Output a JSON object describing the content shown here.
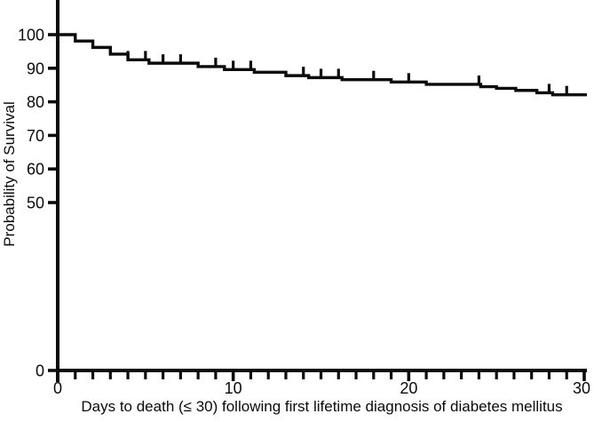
{
  "figure": {
    "background_color": "#ffffff",
    "ink_color": "#0b0b0b"
  },
  "chart_data": {
    "type": "line",
    "subtype": "kaplan-meier-step-curve",
    "title": "",
    "xlabel": "Days to death (≤ 30) following first lifetime diagnosis of diabetes mellitus",
    "ylabel": "Probability of Survival",
    "xlim": [
      0,
      30
    ],
    "ylim": [
      0,
      110
    ],
    "x_major_ticks": [
      0,
      10,
      20,
      30
    ],
    "x_major_tick_labels": [
      "0",
      "10",
      "20",
      "30"
    ],
    "x_minor_tick_interval": 1,
    "y_ticks": [
      0,
      50,
      60,
      70,
      80,
      90,
      100
    ],
    "y_tick_labels": [
      "0",
      "50",
      "60",
      "70",
      "80",
      "90",
      "100"
    ],
    "grid": false,
    "legend_position": "none",
    "series": [
      {
        "name": "Probability of Survival",
        "color": "#0b0b0b",
        "step_points": [
          [
            0,
            100
          ],
          [
            1,
            98.1
          ],
          [
            2,
            96.2
          ],
          [
            3,
            94.2
          ],
          [
            4,
            92.5
          ],
          [
            5.2,
            91.5
          ],
          [
            8,
            90.5
          ],
          [
            9.5,
            89.6
          ],
          [
            11.2,
            88.8
          ],
          [
            13,
            87.8
          ],
          [
            14.3,
            87.2
          ],
          [
            16.2,
            86.6
          ],
          [
            19,
            85.9
          ],
          [
            21,
            85.2
          ],
          [
            24.1,
            84.5
          ],
          [
            25,
            84.0
          ],
          [
            26.1,
            83.4
          ],
          [
            27.3,
            82.7
          ],
          [
            28.2,
            82.1
          ],
          [
            30,
            82.1
          ]
        ],
        "censor_mark_days": [
          4,
          5,
          6,
          7,
          9,
          10,
          11,
          14,
          15,
          16,
          18,
          20,
          24,
          28,
          29
        ],
        "start_value": 100,
        "end_value": 82
      }
    ]
  }
}
